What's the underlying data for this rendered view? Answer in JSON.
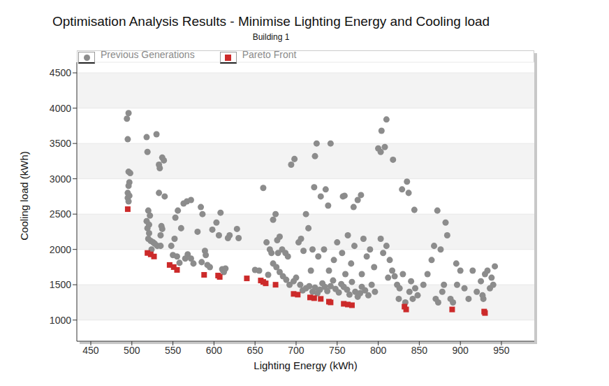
{
  "chart_data": {
    "type": "scatter",
    "title": "Optimisation Analysis Results - Minimise Lighting Energy and Cooling load",
    "subtitle": "Building 1",
    "x_label": "Lighting Energy (kWh)",
    "y_label": "Cooling load (kWh)",
    "xlim": [
      433,
      990
    ],
    "xticks": [
      450,
      500,
      550,
      600,
      650,
      700,
      750,
      800,
      850,
      900,
      950
    ],
    "ylim": [
      700,
      4650
    ],
    "yticks": [
      1000,
      1500,
      2000,
      2500,
      3000,
      3500,
      4000,
      4500
    ],
    "grid": true,
    "legend": "top-left",
    "series": [
      {
        "name": "Previous Generations",
        "color": "#8c8c8c",
        "marker": "circle",
        "x": [
          496,
          494,
          495,
          496,
          498,
          497,
          496,
          495,
          495,
          497,
          496,
          518,
          519,
          530,
          520,
          522,
          518,
          521,
          519,
          521,
          520,
          523,
          526,
          528,
          531,
          524,
          533,
          534,
          537,
          539,
          533,
          540,
          536,
          537,
          535,
          535,
          553,
          556,
          563,
          567,
          572,
          560,
          552,
          548,
          550,
          555,
          565,
          568,
          572,
          575,
          584,
          586,
          589,
          590,
          585,
          592,
          595,
          598,
          603,
          606,
          608,
          610,
          612,
          617,
          619,
          614,
          628,
          630,
          558,
          580,
          650,
          655,
          660,
          664,
          668,
          670,
          672,
          675,
          680,
          677,
          683,
          687,
          690,
          694,
          698,
          697,
          700,
          703,
          706,
          709,
          712,
          715,
          718,
          666,
          672,
          676,
          680,
          684,
          688,
          692,
          678,
          705,
          708,
          712,
          716,
          720,
          723,
          726,
          729,
          732,
          735,
          738,
          742,
          745,
          748,
          752,
          755,
          758,
          762,
          765,
          768,
          772,
          775,
          778,
          780,
          784,
          788,
          792,
          796,
          725,
          723,
          742,
          722,
          730,
          736,
          739,
          757,
          759,
          770,
          775,
          779,
          734,
          746,
          750,
          756,
          763,
          767,
          771,
          782,
          786,
          790,
          795,
          740,
          760,
          780,
          727,
          720,
          800,
          803,
          804,
          810,
          808,
          818,
          803,
          806,
          810,
          814,
          817,
          820,
          823,
          826,
          829,
          835,
          837,
          844,
          830,
          840,
          845,
          848,
          812,
          825,
          833,
          842,
          838,
          855,
          860,
          865,
          868,
          872,
          876,
          870,
          873,
          878,
          882,
          884,
          880,
          888,
          891,
          895,
          896,
          900,
          905,
          910,
          915,
          920,
          925,
          928,
          930,
          933,
          936,
          940,
          942,
          938,
          927
        ],
        "values": [
          3930,
          3850,
          3560,
          3100,
          3080,
          2950,
          2900,
          2800,
          2730,
          2760,
          2680,
          3590,
          3380,
          3630,
          2550,
          2480,
          2400,
          2350,
          2300,
          2230,
          2150,
          2120,
          2100,
          2080,
          2050,
          2000,
          3200,
          3150,
          3300,
          3260,
          2800,
          2750,
          2330,
          2290,
          2200,
          2050,
          2450,
          2550,
          2650,
          2680,
          2700,
          2300,
          2150,
          2050,
          1920,
          1900,
          1870,
          1930,
          1870,
          1800,
          2600,
          2500,
          1980,
          1920,
          1820,
          1780,
          1750,
          2280,
          2380,
          2200,
          2520,
          1720,
          1680,
          2160,
          2200,
          1730,
          2290,
          2160,
          1810,
          2250,
          1710,
          1700,
          2870,
          2100,
          2000,
          1950,
          2420,
          2500,
          2180,
          2130,
          2000,
          1950,
          1900,
          3200,
          3280,
          1550,
          1600,
          2100,
          2150,
          1980,
          2500,
          2300,
          1700,
          1640,
          1800,
          1750,
          1680,
          1620,
          1570,
          1500,
          1950,
          1500,
          1420,
          1450,
          1480,
          1400,
          1460,
          1380,
          1430,
          1520,
          1470,
          1410,
          1480,
          1560,
          1440,
          1390,
          1510,
          1470,
          1430,
          1360,
          1540,
          1400,
          1330,
          1380,
          1470,
          1420,
          1350,
          1500,
          1400,
          3500,
          3320,
          3500,
          2880,
          2750,
          2850,
          2620,
          2750,
          2760,
          2600,
          2700,
          2770,
          2000,
          1850,
          2100,
          1950,
          2200,
          1800,
          2050,
          2150,
          1900,
          2000,
          1750,
          1700,
          1650,
          1650,
          1900,
          2000,
          3430,
          3380,
          3680,
          3840,
          3450,
          3270,
          2150,
          1950,
          2050,
          1850,
          1700,
          1620,
          1500,
          1450,
          2850,
          2960,
          2800,
          2560,
          1650,
          1550,
          1450,
          1350,
          1600,
          1300,
          1250,
          1300,
          1400,
          1500,
          1650,
          1850,
          2050,
          2550,
          2000,
          1300,
          1250,
          1400,
          2380,
          2200,
          1500,
          1300,
          1250,
          1800,
          1500,
          1700,
          1450,
          1300,
          1700,
          1400,
          1550,
          1300,
          1650,
          1700,
          1450,
          1500,
          1760,
          1600,
          1350
        ]
      },
      {
        "name": "Pareto Front",
        "color": "#cc2a2a",
        "marker": "square",
        "x": [
          495,
          519,
          523,
          527,
          546,
          551,
          555,
          588,
          605,
          607,
          640,
          657,
          660,
          663,
          675,
          697,
          702,
          717,
          722,
          730,
          740,
          742,
          758,
          763,
          768,
          832,
          834,
          890,
          929,
          930
        ],
        "values": [
          2570,
          1950,
          1930,
          1900,
          1780,
          1750,
          1710,
          1640,
          1630,
          1610,
          1590,
          1560,
          1540,
          1520,
          1500,
          1370,
          1360,
          1320,
          1310,
          1300,
          1260,
          1250,
          1230,
          1220,
          1210,
          1190,
          1150,
          1150,
          1120,
          1100
        ]
      }
    ]
  }
}
